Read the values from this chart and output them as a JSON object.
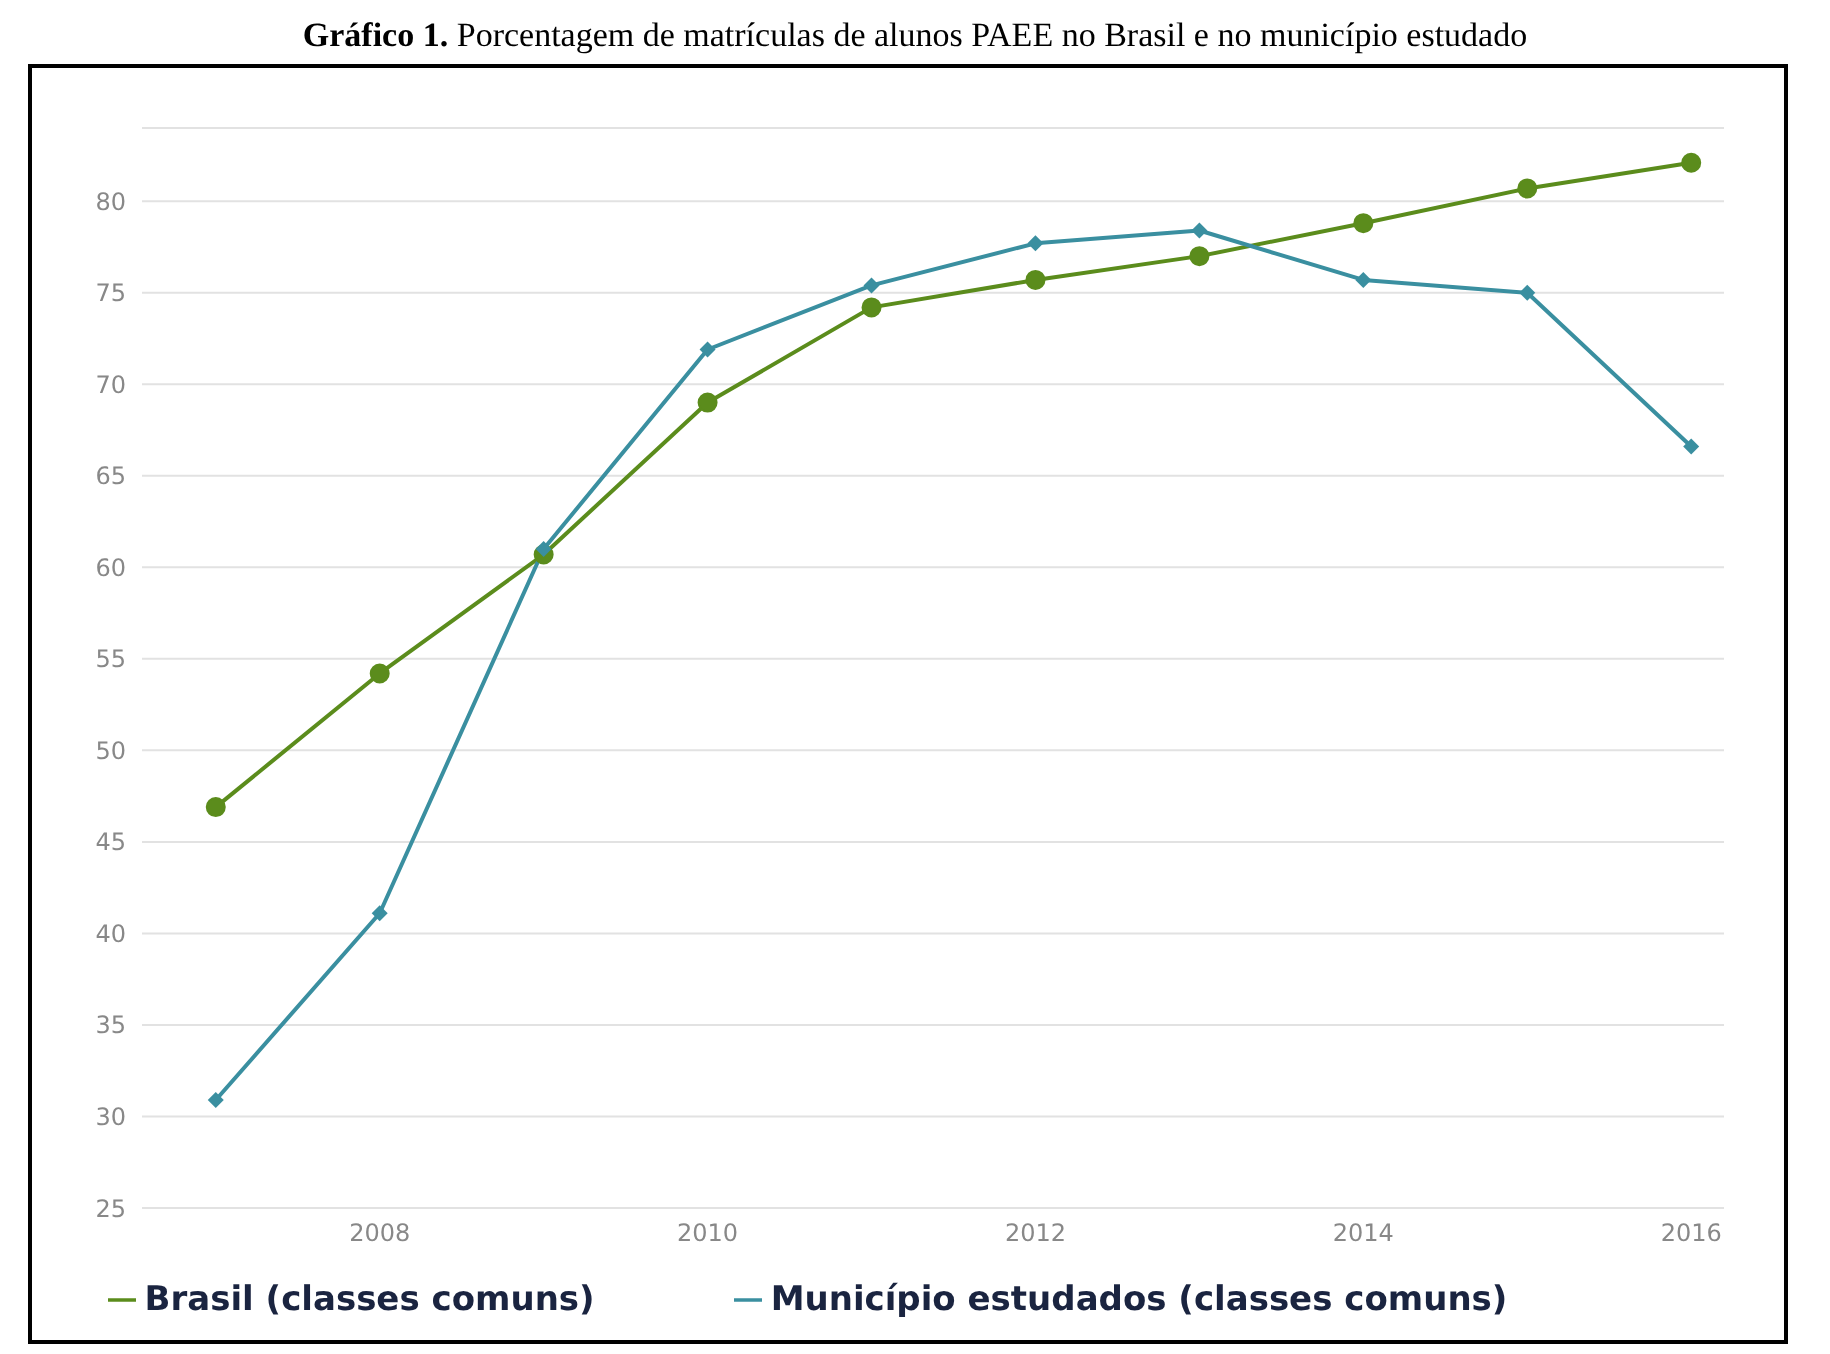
{
  "chart_data": {
    "type": "line",
    "title": "Gráfico 1. Porcentagem de matrículas de alunos PAEE no Brasil e no município estudado",
    "x": [
      2007,
      2008,
      2009,
      2010,
      2011,
      2012,
      2013,
      2014,
      2015,
      2016
    ],
    "series": [
      {
        "name": "Brasil (classes comuns)",
        "color": "#5b8c1c",
        "marker": "circle",
        "values": [
          46.9,
          54.2,
          60.7,
          69.0,
          74.2,
          75.7,
          77.0,
          78.8,
          80.7,
          82.1
        ]
      },
      {
        "name": "Município estudados (classes comuns)",
        "color": "#3a8fa0",
        "marker": "diamond",
        "values": [
          30.9,
          41.1,
          61.0,
          71.9,
          75.4,
          77.7,
          78.4,
          75.7,
          75.0,
          66.6
        ]
      }
    ],
    "xlim": [
      2006.55,
      2016.2
    ],
    "xticks": [
      2008,
      2010,
      2012,
      2014,
      2016
    ],
    "ylim": [
      25,
      84
    ],
    "yticks": [
      25,
      30,
      35,
      40,
      45,
      50,
      55,
      60,
      65,
      70,
      75,
      80
    ],
    "grid": "y",
    "legend": "bottom",
    "line_style": "solid"
  }
}
